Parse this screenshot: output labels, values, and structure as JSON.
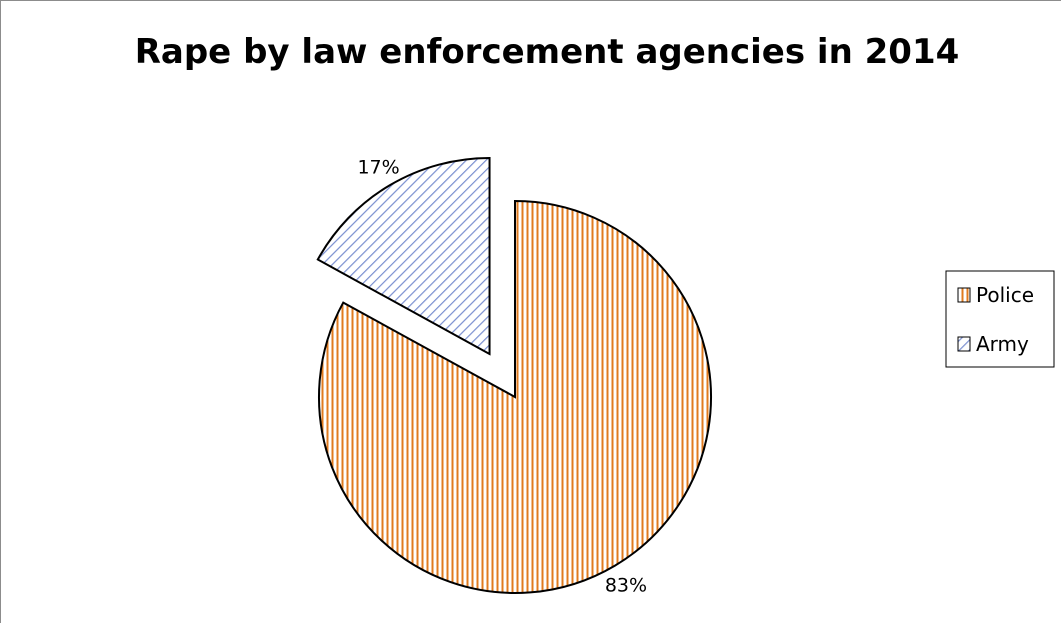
{
  "chart_data": {
    "type": "pie",
    "title": "Rape by law enforcement agencies in 2014",
    "categories": [
      "Police",
      "Army"
    ],
    "values": [
      83,
      17
    ],
    "data_labels": [
      "83%",
      "17%"
    ],
    "exploded": [
      "Army"
    ],
    "legend_position": "right",
    "colors": {
      "Police": "#e07b1f",
      "Army": "#7a8fd0",
      "outline": "#000000"
    },
    "patterns": {
      "Police": "vertical-stripes",
      "Army": "diagonal-stripes"
    }
  }
}
